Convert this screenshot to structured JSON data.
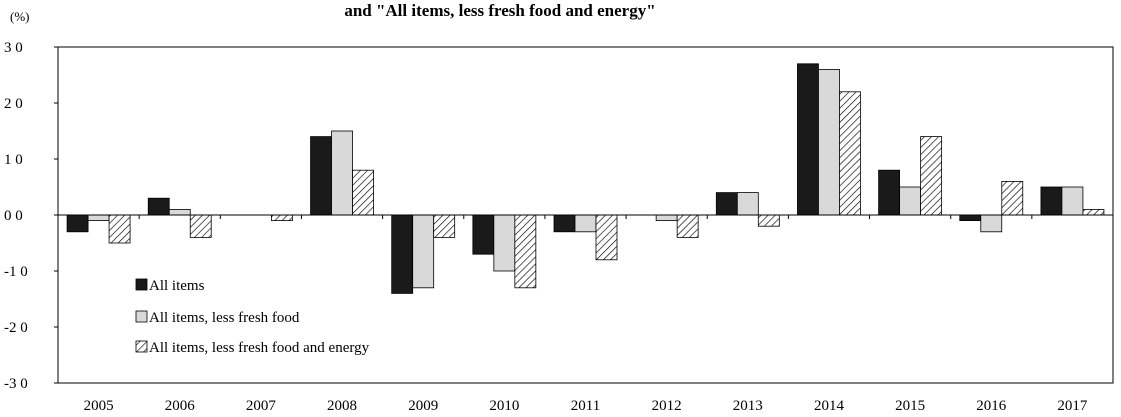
{
  "chart_data": {
    "type": "bar",
    "title": "and \"All items, less fresh food and energy\"",
    "unit_label": "(%)",
    "categories": [
      "2005",
      "2006",
      "2007",
      "2008",
      "2009",
      "2010",
      "2011",
      "2012",
      "2013",
      "2014",
      "2015",
      "2016",
      "2017"
    ],
    "series": [
      {
        "name": "All items",
        "fill": "#1a1a1a",
        "pattern": "solid",
        "values": [
          -0.3,
          0.3,
          0.0,
          1.4,
          -1.4,
          -0.7,
          -0.3,
          0.0,
          0.4,
          2.7,
          0.8,
          -0.1,
          0.5
        ]
      },
      {
        "name": "All items, less fresh food",
        "fill": "#d9d9d9",
        "pattern": "solid",
        "values": [
          -0.1,
          0.1,
          0.0,
          1.5,
          -1.3,
          -1.0,
          -0.3,
          -0.1,
          0.4,
          2.6,
          0.5,
          -0.3,
          0.5
        ]
      },
      {
        "name": "All items, less fresh food and energy",
        "fill": "#ffffff",
        "pattern": "hatch",
        "values": [
          -0.5,
          -0.4,
          -0.1,
          0.8,
          -0.4,
          -1.3,
          -0.8,
          -0.4,
          -0.2,
          2.2,
          1.4,
          0.6,
          0.1
        ]
      }
    ],
    "ylim": [
      -3.0,
      3.0
    ],
    "yticks": [
      3.0,
      2.0,
      1.0,
      0.0,
      -1.0,
      -2.0,
      -3.0
    ],
    "ytick_labels": [
      "3 0",
      "2 0",
      "1 0",
      "0 0",
      "-1 0",
      "-2 0",
      "-3 0"
    ],
    "grid": false,
    "legend_position": "lower-left"
  }
}
